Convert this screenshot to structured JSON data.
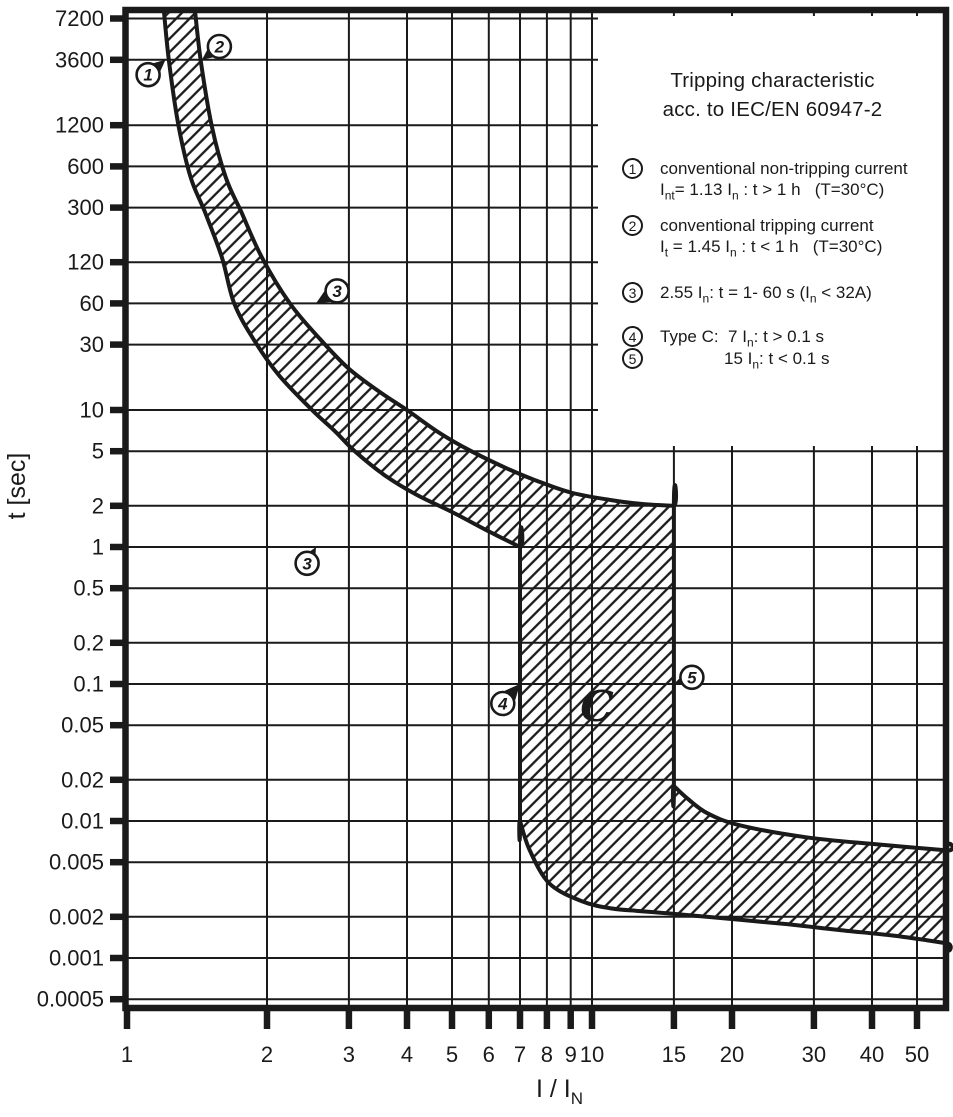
{
  "legend": {
    "title_line1": "Tripping characteristic",
    "title_line2": "acc. to IEC/EN 60947-2",
    "items": [
      {
        "num": "1",
        "lines": [
          [
            {
              "t": "conventional non-tripping current"
            }
          ],
          [
            {
              "t": "I"
            },
            {
              "sub": "nt"
            },
            {
              "t": "= 1.13 I"
            },
            {
              "sub": "n"
            },
            {
              "t": " : t > 1 h   (T=30°C)"
            }
          ]
        ]
      },
      {
        "num": "2",
        "lines": [
          [
            {
              "t": "conventional tripping current"
            }
          ],
          [
            {
              "t": "I"
            },
            {
              "sub": "t"
            },
            {
              "t": " = 1.45 I"
            },
            {
              "sub": "n"
            },
            {
              "t": " : t < 1 h   (T=30°C)"
            }
          ]
        ]
      },
      {
        "num": "3",
        "lines": [
          [
            {
              "t": "2.55 I"
            },
            {
              "sub": "n"
            },
            {
              "t": ": t = 1- 60 s (I"
            },
            {
              "sub": "n"
            },
            {
              "t": " < 32A)"
            }
          ]
        ]
      },
      {
        "num": "4",
        "lines": [
          [
            {
              "t": "Type C:  7 I"
            },
            {
              "sub": "n"
            },
            {
              "t": ": t > 0.1 s"
            }
          ]
        ]
      },
      {
        "num": "5",
        "lines": [
          [
            {
              "t": "15 I"
            },
            {
              "sub": "n"
            },
            {
              "t": ": t < 0.1 s"
            }
          ]
        ]
      }
    ]
  },
  "axes": {
    "y_title": "t [sec]",
    "x_title_main": "I / I",
    "x_title_sub": "N"
  },
  "chart_data": {
    "type": "area",
    "title": "Tripping characteristic acc. to IEC/EN 60947-2",
    "xlabel": "I / IN",
    "ylabel": "t [sec]",
    "x_scale": "log",
    "y_scale": "log",
    "xlim": [
      1,
      58
    ],
    "ylim": [
      0.00045,
      8300
    ],
    "grid": true,
    "legend_position": "top-right",
    "x_ticks": [
      1,
      2,
      3,
      4,
      5,
      6,
      7,
      8,
      9,
      10,
      15,
      20,
      30,
      40,
      50
    ],
    "y_ticks": [
      7200,
      3600,
      1200,
      600,
      300,
      120,
      60,
      30,
      10,
      5,
      2,
      1,
      0.5,
      0.2,
      0.1,
      0.05,
      0.02,
      0.01,
      0.005,
      0.002,
      0.001,
      0.0005
    ],
    "band": {
      "name": "Type C tripping band (hatched)",
      "min_trip": [
        [
          1.2,
          8300
        ],
        [
          1.23,
          3600
        ],
        [
          1.29,
          1200
        ],
        [
          1.37,
          500
        ],
        [
          1.47,
          280
        ],
        [
          1.6,
          130
        ],
        [
          1.7,
          60
        ],
        [
          1.88,
          32
        ],
        [
          2.12,
          18
        ],
        [
          2.5,
          10
        ],
        [
          2.8,
          7.0
        ],
        [
          3.09,
          5.0
        ],
        [
          3.6,
          3.3
        ],
        [
          4.2,
          2.4
        ],
        [
          5.0,
          1.8
        ],
        [
          6.0,
          1.3
        ],
        [
          7.0,
          1.0
        ],
        [
          7.0,
          0.01
        ],
        [
          7.35,
          0.0061
        ],
        [
          8.1,
          0.0035
        ],
        [
          9.5,
          0.0026
        ],
        [
          11,
          0.0023
        ],
        [
          12.7,
          0.0022
        ],
        [
          15,
          0.0021
        ],
        [
          20.8,
          0.0019
        ],
        [
          27,
          0.00175
        ],
        [
          34,
          0.0016
        ],
        [
          45,
          0.00145
        ],
        [
          58,
          0.00128
        ]
      ],
      "max_trip": [
        [
          1.4,
          8300
        ],
        [
          1.44,
          3600
        ],
        [
          1.52,
          1200
        ],
        [
          1.63,
          500
        ],
        [
          1.76,
          280
        ],
        [
          1.95,
          130
        ],
        [
          2.24,
          60
        ],
        [
          2.6,
          33
        ],
        [
          3.0,
          20
        ],
        [
          3.5,
          13.5
        ],
        [
          4.0,
          10
        ],
        [
          4.7,
          6.8
        ],
        [
          5.5,
          5.0
        ],
        [
          6.5,
          3.8
        ],
        [
          7.5,
          3.1
        ],
        [
          9.0,
          2.5
        ],
        [
          11,
          2.2
        ],
        [
          13,
          2.05
        ],
        [
          15,
          2.0
        ],
        [
          15,
          0.018
        ],
        [
          16,
          0.0147
        ],
        [
          17.7,
          0.0114
        ],
        [
          20.8,
          0.0093
        ],
        [
          28.9,
          0.0076
        ],
        [
          40,
          0.0068
        ],
        [
          58,
          0.0061
        ]
      ]
    },
    "markers": [
      {
        "label": "1",
        "circle": [
          1.11,
          2800
        ],
        "target": [
          1.21,
          3600
        ]
      },
      {
        "label": "2",
        "circle": [
          1.58,
          4500
        ],
        "target": [
          1.45,
          3600
        ]
      },
      {
        "label": "3",
        "circle": [
          2.83,
          74
        ],
        "target": [
          2.55,
          60
        ]
      },
      {
        "label": "3",
        "circle": [
          2.44,
          0.76
        ],
        "target": [
          2.55,
          1.0
        ]
      },
      {
        "label": "4",
        "circle": [
          6.43,
          0.072
        ],
        "target": [
          7.0,
          0.1
        ]
      },
      {
        "label": "5",
        "circle": [
          16.4,
          0.112
        ],
        "target": [
          15.0,
          0.1
        ]
      }
    ],
    "region_label": {
      "text": "C",
      "x": 10.25,
      "y": 0.069
    },
    "annotations": "Markers 1-5 point to coordinate points explained in the legend"
  }
}
